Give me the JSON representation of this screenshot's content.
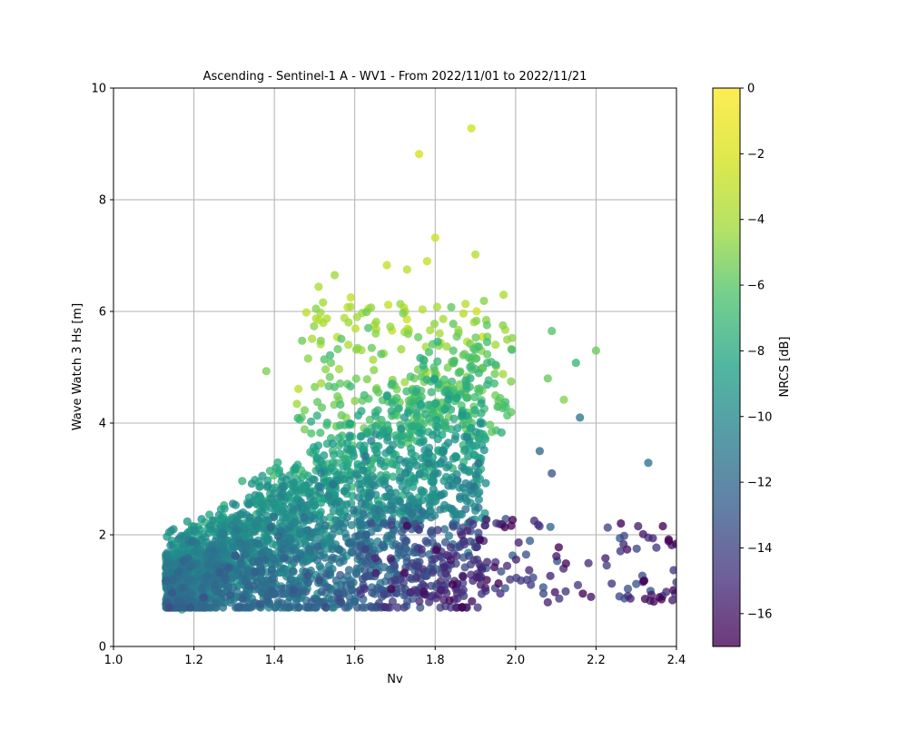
{
  "chart_data": {
    "type": "scatter",
    "title": "Ascending - Sentinel-1 A - WV1 - From 2022/11/01 to 2022/11/21",
    "xlabel": "Nv",
    "ylabel": "Wave Watch 3 Hs [m]",
    "xlim": [
      1.0,
      2.4
    ],
    "ylim": [
      0,
      10
    ],
    "x_ticks": [
      "1.0",
      "1.2",
      "1.4",
      "1.6",
      "1.8",
      "2.0",
      "2.2",
      "2.4"
    ],
    "y_ticks": [
      "0",
      "2",
      "4",
      "6",
      "8",
      "10"
    ],
    "grid": true,
    "colorbar": {
      "label": "NRCS [dB]",
      "range": [
        -17,
        0
      ],
      "ticks": [
        "0",
        "−2",
        "−4",
        "−6",
        "−8",
        "−10",
        "−12",
        "−14",
        "−16"
      ],
      "colormap": "viridis"
    },
    "point_count_approx": 3000,
    "notable_points": [
      {
        "x": 1.89,
        "y": 9.28,
        "nrcs": -2.5
      },
      {
        "x": 1.76,
        "y": 8.82,
        "nrcs": -2.2
      },
      {
        "x": 1.8,
        "y": 7.32,
        "nrcs": -2.6
      },
      {
        "x": 1.9,
        "y": 7.02,
        "nrcs": -3.4
      },
      {
        "x": 1.78,
        "y": 6.9,
        "nrcs": -2.9
      },
      {
        "x": 1.68,
        "y": 6.83,
        "nrcs": -3.0
      },
      {
        "x": 1.73,
        "y": 6.75,
        "nrcs": -3.3
      },
      {
        "x": 1.55,
        "y": 6.65,
        "nrcs": -4.3
      },
      {
        "x": 1.51,
        "y": 6.44,
        "nrcs": -3.8
      },
      {
        "x": 1.97,
        "y": 6.3,
        "nrcs": -3.8
      },
      {
        "x": 1.59,
        "y": 6.25,
        "nrcs": -2.9
      },
      {
        "x": 2.09,
        "y": 5.65,
        "nrcs": -6.2
      },
      {
        "x": 2.2,
        "y": 5.3,
        "nrcs": -5.6
      },
      {
        "x": 2.15,
        "y": 5.08,
        "nrcs": -7.2
      },
      {
        "x": 1.38,
        "y": 4.93,
        "nrcs": -5.2
      },
      {
        "x": 2.08,
        "y": 4.8,
        "nrcs": -5.7
      },
      {
        "x": 2.12,
        "y": 4.42,
        "nrcs": -5.0
      },
      {
        "x": 2.16,
        "y": 4.1,
        "nrcs": -11.2
      },
      {
        "x": 2.33,
        "y": 3.29,
        "nrcs": -11.6
      },
      {
        "x": 2.06,
        "y": 3.5,
        "nrcs": -12.1
      },
      {
        "x": 2.09,
        "y": 3.1,
        "nrcs": -13.2
      },
      {
        "x": 1.17,
        "y": 0.66,
        "nrcs": -7.3
      },
      {
        "x": 2.39,
        "y": 0.83,
        "nrcs": -15.8
      },
      {
        "x": 2.08,
        "y": 0.79,
        "nrcs": -15.5
      },
      {
        "x": 2.4,
        "y": 1.15,
        "nrcs": -14.0
      },
      {
        "x": 2.27,
        "y": 1.98,
        "nrcs": -13.6
      },
      {
        "x": 2.33,
        "y": 1.95,
        "nrcs": -15.0
      },
      {
        "x": 2.35,
        "y": 1.77,
        "nrcs": -14.5
      },
      {
        "x": 2.3,
        "y": 1.12,
        "nrcs": -13.0
      },
      {
        "x": 2.32,
        "y": 1.18,
        "nrcs": -14.0
      }
    ]
  }
}
